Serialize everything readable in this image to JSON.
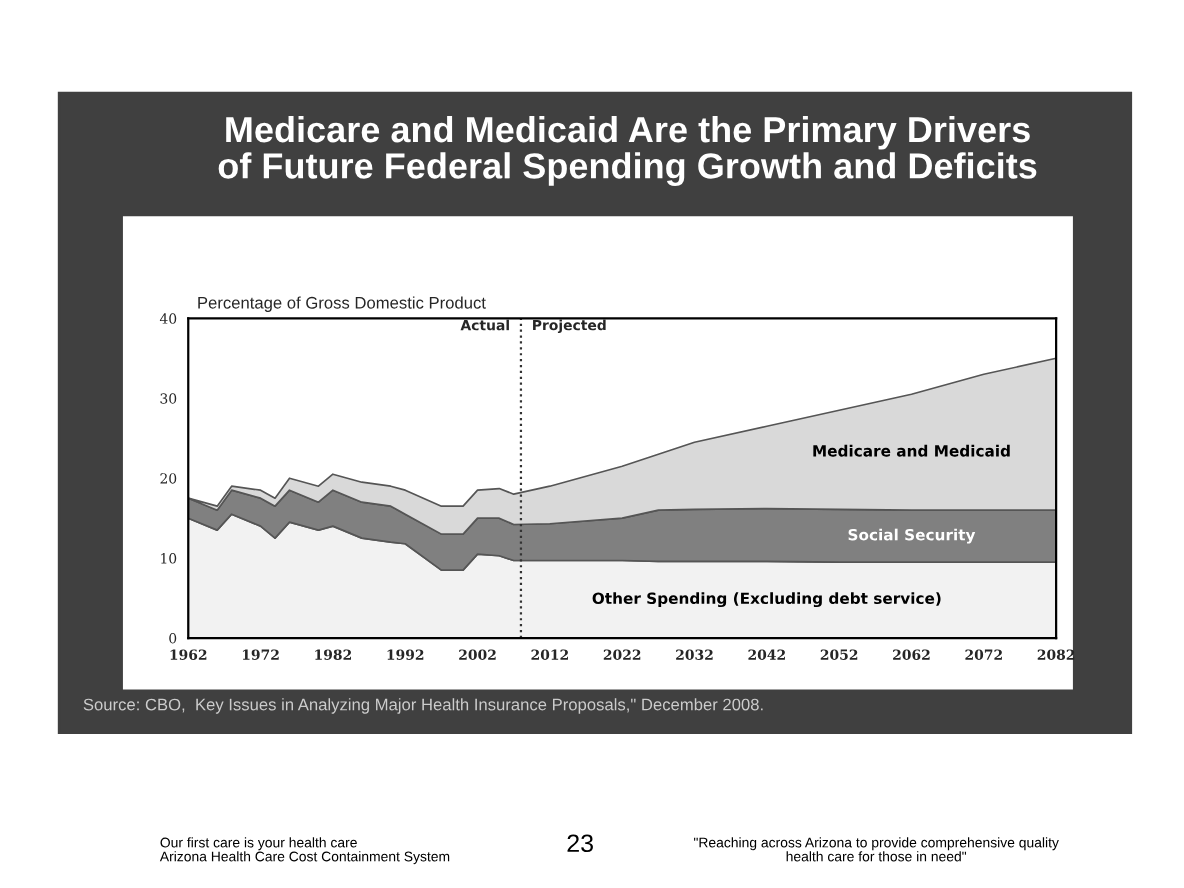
{
  "chart_data": {
    "type": "area",
    "stacked": true,
    "title": "Medicare and Medicaid Are the Primary Drivers\nof Future Federal Spending Growth and Deficits",
    "ylabel": "Percentage of Gross Domestic Product",
    "x": [
      1962,
      1966,
      1968,
      1972,
      1974,
      1976,
      1980,
      1982,
      1986,
      1990,
      1992,
      1997,
      2000,
      2002,
      2005,
      2007,
      2012,
      2022,
      2027,
      2032,
      2042,
      2052,
      2062,
      2072,
      2082
    ],
    "series": [
      {
        "name": "Other Spending (Excluding debt service)",
        "color": "#f2f2f2",
        "values": [
          15,
          13.5,
          15.5,
          14,
          12.5,
          14.5,
          13.5,
          14,
          12.5,
          12,
          11.8,
          8.5,
          8.5,
          10.5,
          10.3,
          9.7,
          9.7,
          9.7,
          9.6,
          9.6,
          9.6,
          9.5,
          9.5,
          9.5,
          9.5
        ]
      },
      {
        "name": "Social Security",
        "color": "#808080",
        "values": [
          2.5,
          2.5,
          3,
          3.5,
          4,
          4,
          3.5,
          4.5,
          4.5,
          4.5,
          3.7,
          4.5,
          4.5,
          4.5,
          4.7,
          4.5,
          4.6,
          5.3,
          6.4,
          6.5,
          6.6,
          6.6,
          6.5,
          6.5,
          6.5
        ]
      },
      {
        "name": "Medicare and Medicaid",
        "color": "#d9d9d9",
        "values": [
          0,
          0.5,
          0.5,
          1,
          1,
          1.5,
          2,
          2,
          2.5,
          2.5,
          3,
          3.5,
          3.5,
          3.5,
          3.7,
          3.8,
          4.7,
          6.5,
          7,
          8.4,
          10.3,
          12.4,
          14.5,
          17,
          19
        ]
      }
    ],
    "xlim": [
      1962,
      2082
    ],
    "xticks": [
      1962,
      1972,
      1982,
      1992,
      2002,
      2012,
      2022,
      2032,
      2042,
      2052,
      2062,
      2072,
      2082
    ],
    "ylim": [
      0,
      40
    ],
    "yticks": [
      0,
      10,
      20,
      30,
      40
    ],
    "ref_lines": [
      {
        "axis": "x",
        "value": 2008,
        "line_style": "dotted"
      }
    ],
    "annotations": [
      {
        "text": "Actual",
        "x": 2008,
        "y": 39
      },
      {
        "text": "Projected",
        "x": 2008,
        "y": 39
      },
      "Source: CBO,  Key Issues in Analyzing Major Health Insurance Proposals,\" December 2008.",
      "Our first care is your health care\nArizona Health Care Cost Containment System",
      "23",
      "\"Reaching across Arizona to provide comprehensive quality\nhealth care for those in need\""
    ],
    "grid": false,
    "legend": false
  }
}
